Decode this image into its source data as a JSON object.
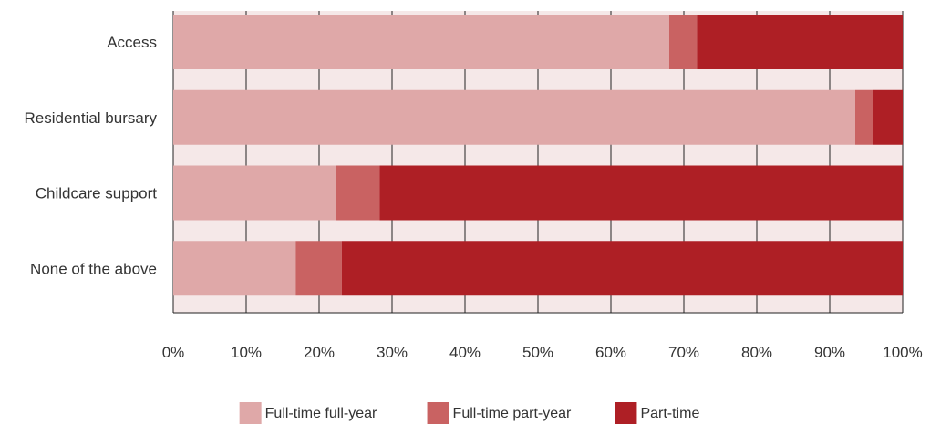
{
  "chart_data": {
    "type": "bar",
    "orientation": "horizontal",
    "stacked": true,
    "categories": [
      "Access",
      "Residential bursary",
      "Childcare support",
      "None of the above"
    ],
    "series": [
      {
        "name": "Full-time full-year",
        "values": [
          68,
          93.5,
          22.3,
          16.8
        ],
        "color": "#dfa8a8"
      },
      {
        "name": "Full-time part-year",
        "values": [
          3.8,
          2.4,
          6.0,
          6.3
        ],
        "color": "#c96262"
      },
      {
        "name": "Part-time",
        "values": [
          28.2,
          4.1,
          71.7,
          76.9
        ],
        "color": "#ae1f25"
      }
    ],
    "xlim": [
      0,
      100
    ],
    "x_ticks": [
      "0%",
      "10%",
      "20%",
      "30%",
      "40%",
      "50%",
      "60%",
      "70%",
      "80%",
      "90%",
      "100%"
    ],
    "grid": true,
    "legend_position": "bottom",
    "title": "",
    "xlabel": "",
    "ylabel": "",
    "background_band_color": "#f5e8e8"
  }
}
